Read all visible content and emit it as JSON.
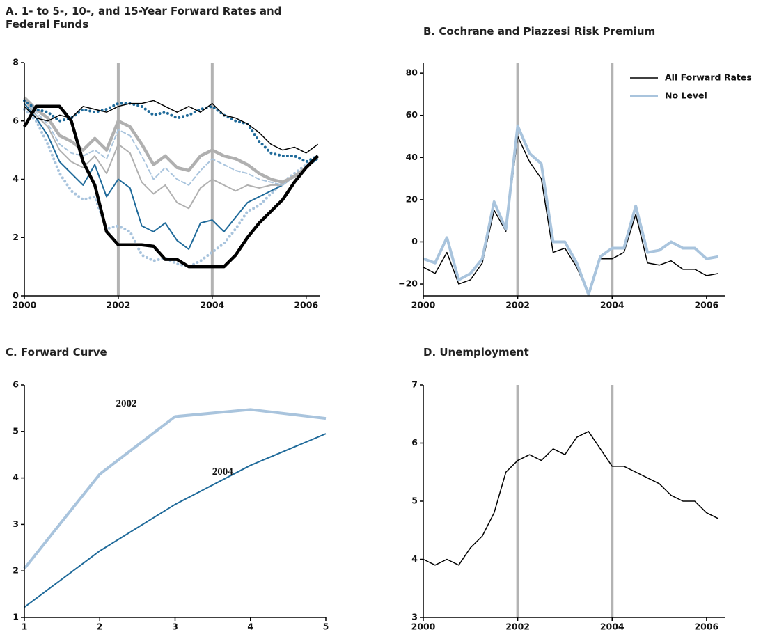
{
  "chart_data": [
    {
      "type": "line",
      "title": "A. 1- to 5-, 10-, and 15-Year Forward Rates and Federal Funds",
      "x": [
        2000,
        2000.25,
        2000.5,
        2000.75,
        2001,
        2001.25,
        2001.5,
        2001.75,
        2002,
        2002.25,
        2002.5,
        2002.75,
        2003,
        2003.25,
        2003.5,
        2003.75,
        2004,
        2004.25,
        2004.5,
        2004.75,
        2005,
        2005.25,
        2005.5,
        2005.75,
        2006,
        2006.25
      ],
      "xlim": [
        2000,
        2006.3
      ],
      "xticks": [
        2000,
        2002,
        2004,
        2006
      ],
      "ylim": [
        0,
        8
      ],
      "yticks": [
        0,
        2,
        4,
        6,
        8
      ],
      "vlines": [
        2002,
        2004
      ],
      "series": [
        {
          "color": "#a9c4dd",
          "width": 4,
          "dash": "dotted",
          "values": [
            6.4,
            6.0,
            5.2,
            4.2,
            3.6,
            3.3,
            3.4,
            2.3,
            2.4,
            2.2,
            1.4,
            1.2,
            1.3,
            1.1,
            1.0,
            1.2,
            1.5,
            1.8,
            2.3,
            2.9,
            3.1,
            3.5,
            3.9,
            4.2,
            4.5,
            4.8
          ]
        },
        {
          "color": "#1f6a9a",
          "width": 2,
          "dash": "solid",
          "values": [
            6.6,
            6.1,
            5.5,
            4.6,
            4.2,
            3.8,
            4.5,
            3.4,
            4.0,
            3.7,
            2.4,
            2.2,
            2.5,
            1.9,
            1.6,
            2.5,
            2.6,
            2.2,
            2.7,
            3.2,
            3.4,
            3.6,
            3.8,
            4.1,
            4.4,
            4.7
          ]
        },
        {
          "color": "#b0b0b0",
          "width": 2,
          "dash": "solid",
          "values": [
            6.7,
            6.2,
            5.8,
            5.0,
            4.6,
            4.4,
            4.8,
            4.2,
            5.2,
            4.9,
            3.9,
            3.5,
            3.8,
            3.2,
            3.0,
            3.7,
            4.0,
            3.8,
            3.6,
            3.8,
            3.7,
            3.8,
            3.8,
            4.1,
            4.4,
            4.8
          ]
        },
        {
          "color": "#a9c4dd",
          "width": 2,
          "dash": "dashed",
          "values": [
            6.7,
            6.3,
            5.9,
            5.2,
            4.9,
            4.8,
            5.0,
            4.7,
            5.7,
            5.5,
            4.8,
            4.0,
            4.4,
            4.0,
            3.8,
            4.3,
            4.7,
            4.5,
            4.3,
            4.2,
            4.0,
            3.9,
            3.8,
            4.1,
            4.4,
            4.8
          ]
        },
        {
          "color": "#b0b0b0",
          "width": 4.5,
          "dash": "solid",
          "values": [
            6.8,
            6.4,
            6.1,
            5.5,
            5.3,
            5.0,
            5.4,
            5.0,
            6.0,
            5.8,
            5.2,
            4.5,
            4.8,
            4.4,
            4.3,
            4.8,
            5.0,
            4.8,
            4.7,
            4.5,
            4.2,
            4.0,
            3.9,
            4.1,
            4.4,
            4.8
          ]
        },
        {
          "color": "#1f6a9a",
          "width": 4,
          "dash": "dotted",
          "values": [
            6.7,
            6.4,
            6.3,
            6.0,
            6.1,
            6.4,
            6.3,
            6.4,
            6.6,
            6.6,
            6.5,
            6.2,
            6.3,
            6.1,
            6.2,
            6.4,
            6.5,
            6.2,
            6.0,
            5.9,
            5.3,
            4.9,
            4.8,
            4.8,
            4.6,
            4.8
          ]
        },
        {
          "color": "#000000",
          "width": 1.5,
          "dash": "solid",
          "values": [
            6.5,
            6.1,
            6.0,
            6.2,
            6.1,
            6.5,
            6.4,
            6.3,
            6.5,
            6.6,
            6.6,
            6.7,
            6.5,
            6.3,
            6.5,
            6.3,
            6.6,
            6.2,
            6.1,
            5.9,
            5.6,
            5.2,
            5.0,
            5.1,
            4.9,
            5.2
          ]
        },
        {
          "color": "#000000",
          "width": 4.5,
          "dash": "solid",
          "values": [
            5.8,
            6.5,
            6.5,
            6.5,
            6.0,
            4.6,
            3.8,
            2.2,
            1.75,
            1.75,
            1.75,
            1.7,
            1.25,
            1.25,
            1.0,
            1.0,
            1.0,
            1.0,
            1.4,
            2.0,
            2.5,
            2.9,
            3.3,
            3.9,
            4.4,
            4.8
          ]
        }
      ]
    },
    {
      "type": "line",
      "title": "B. Cochrane and Piazzesi Risk Premium",
      "x": [
        2000,
        2000.25,
        2000.5,
        2000.75,
        2001,
        2001.25,
        2001.5,
        2001.75,
        2002,
        2002.25,
        2002.5,
        2002.75,
        2003,
        2003.25,
        2003.5,
        2003.75,
        2004,
        2004.25,
        2004.5,
        2004.75,
        2005,
        2005.25,
        2005.5,
        2005.75,
        2006,
        2006.25
      ],
      "xlim": [
        2000,
        2006.4
      ],
      "xticks": [
        2000,
        2002,
        2004,
        2006
      ],
      "ylim": [
        -25.6,
        85
      ],
      "yticks": [
        {
          "value": -20,
          "label": "−20"
        },
        0,
        20,
        40,
        60,
        80
      ],
      "vlines": [
        2002,
        2004
      ],
      "legend": "upper right",
      "series": [
        {
          "name": "All Forward Rates",
          "color": "#000000",
          "width": 1.5,
          "dash": "solid",
          "values": [
            -12,
            -15,
            -5,
            -20,
            -18,
            -10,
            15,
            5,
            50,
            38,
            30,
            -5,
            -3,
            -12,
            -25,
            -8,
            -8,
            -5,
            13,
            -10,
            -11,
            -9,
            -13,
            -13,
            -16,
            -15
          ]
        },
        {
          "name": "No Level",
          "color": "#a9c4dd",
          "width": 4,
          "dash": "solid",
          "values": [
            -8,
            -10,
            2,
            -18,
            -15,
            -8,
            19,
            6,
            55,
            42,
            37,
            0,
            0,
            -10,
            -25,
            -7,
            -3,
            -3,
            17,
            -5,
            -4,
            0,
            -3,
            -3,
            -8,
            -7
          ]
        }
      ]
    },
    {
      "type": "line",
      "title": "C. Forward Curve",
      "x": [
        1,
        2,
        3,
        4,
        5
      ],
      "xlim": [
        1,
        5
      ],
      "xticks": [
        1,
        2,
        3,
        4,
        5
      ],
      "ylim": [
        1,
        6
      ],
      "yticks": [
        1,
        2,
        3,
        4,
        5,
        6
      ],
      "direct_labels": true,
      "series": [
        {
          "name": "2002",
          "color": "#a9c4dd",
          "width": 4,
          "dash": "solid",
          "values": [
            2.05,
            4.08,
            5.32,
            5.47,
            5.28
          ]
        },
        {
          "name": "2004",
          "color": "#1f6a9a",
          "width": 2,
          "dash": "solid",
          "values": [
            1.22,
            2.43,
            3.43,
            4.27,
            4.95
          ]
        }
      ]
    },
    {
      "type": "line",
      "title": "D. Unemployment",
      "x": [
        2000,
        2000.25,
        2000.5,
        2000.75,
        2001,
        2001.25,
        2001.5,
        2001.75,
        2002,
        2002.25,
        2002.5,
        2002.75,
        2003,
        2003.25,
        2003.5,
        2003.75,
        2004,
        2004.25,
        2004.5,
        2004.75,
        2005,
        2005.25,
        2005.5,
        2005.75,
        2006,
        2006.25
      ],
      "xlim": [
        2000,
        2006.4
      ],
      "xticks": [
        2000,
        2002,
        2004,
        2006
      ],
      "ylim": [
        3,
        7
      ],
      "yticks": [
        3,
        4,
        5,
        6,
        7
      ],
      "vlines": [
        2002,
        2004
      ],
      "series": [
        {
          "color": "#000000",
          "width": 1.5,
          "dash": "solid",
          "values": [
            4.0,
            3.9,
            4.0,
            3.9,
            4.2,
            4.4,
            4.8,
            5.5,
            5.7,
            5.8,
            5.7,
            5.9,
            5.8,
            6.1,
            6.2,
            5.9,
            5.6,
            5.6,
            5.5,
            5.4,
            5.3,
            5.1,
            5.0,
            5.0,
            4.8,
            4.7
          ]
        }
      ]
    }
  ]
}
